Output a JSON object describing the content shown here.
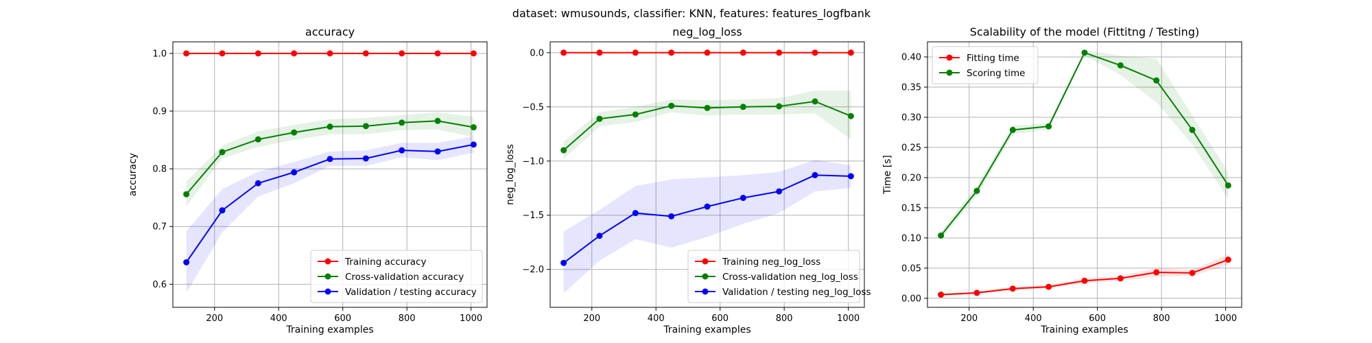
{
  "figure": {
    "suptitle": "dataset: wmusounds, classifier: KNN, features: features_logfbank"
  },
  "chart_data": [
    {
      "type": "line",
      "title": "accuracy",
      "xlabel": "Training examples",
      "ylabel": "accuracy",
      "xlim": [
        70,
        1050
      ],
      "ylim": [
        0.56,
        1.02
      ],
      "xticks": [
        200,
        400,
        600,
        800,
        1000
      ],
      "yticks": [
        0.6,
        0.7,
        0.8,
        0.9,
        1.0
      ],
      "ytick_labels": [
        "0.6",
        "0.7",
        "0.8",
        "0.9",
        "1.0"
      ],
      "grid": true,
      "legend_position": "lower-right",
      "x": [
        112,
        224,
        336,
        448,
        560,
        672,
        784,
        896,
        1008
      ],
      "series": [
        {
          "name": "Training accuracy",
          "color": "#ff0000",
          "values": [
            1.0,
            1.0,
            1.0,
            1.0,
            1.0,
            1.0,
            1.0,
            1.0,
            1.0
          ],
          "band": [
            [
              1.0,
              1.0
            ],
            [
              1.0,
              1.0
            ],
            [
              1.0,
              1.0
            ],
            [
              1.0,
              1.0
            ],
            [
              1.0,
              1.0
            ],
            [
              1.0,
              1.0
            ],
            [
              1.0,
              1.0
            ],
            [
              1.0,
              1.0
            ],
            [
              1.0,
              1.0
            ]
          ]
        },
        {
          "name": "Cross-validation accuracy",
          "color": "#008000",
          "values": [
            0.756,
            0.829,
            0.851,
            0.863,
            0.873,
            0.874,
            0.88,
            0.883,
            0.872
          ],
          "band": [
            [
              0.735,
              0.778
            ],
            [
              0.818,
              0.84
            ],
            [
              0.838,
              0.865
            ],
            [
              0.85,
              0.876
            ],
            [
              0.86,
              0.886
            ],
            [
              0.86,
              0.888
            ],
            [
              0.867,
              0.893
            ],
            [
              0.868,
              0.898
            ],
            [
              0.855,
              0.89
            ]
          ]
        },
        {
          "name": "Validation / testing accuracy",
          "color": "#0000ff",
          "values": [
            0.638,
            0.728,
            0.775,
            0.794,
            0.817,
            0.818,
            0.832,
            0.83,
            0.842
          ],
          "band": [
            [
              0.585,
              0.692
            ],
            [
              0.69,
              0.765
            ],
            [
              0.752,
              0.795
            ],
            [
              0.775,
              0.812
            ],
            [
              0.805,
              0.83
            ],
            [
              0.805,
              0.832
            ],
            [
              0.82,
              0.845
            ],
            [
              0.815,
              0.845
            ],
            [
              0.828,
              0.856
            ]
          ]
        }
      ]
    },
    {
      "type": "line",
      "title": "neg_log_loss",
      "xlabel": "Training examples",
      "ylabel": "neg_log_loss",
      "xlim": [
        70,
        1050
      ],
      "ylim": [
        -2.35,
        0.1
      ],
      "xticks": [
        200,
        400,
        600,
        800,
        1000
      ],
      "yticks": [
        -2.0,
        -1.5,
        -1.0,
        -0.5,
        0.0
      ],
      "ytick_labels": [
        "−2.0",
        "−1.5",
        "−1.0",
        "−0.5",
        "0.0"
      ],
      "grid": true,
      "legend_position": "lower-right",
      "x": [
        112,
        224,
        336,
        448,
        560,
        672,
        784,
        896,
        1008
      ],
      "series": [
        {
          "name": "Training neg_log_loss",
          "color": "#ff0000",
          "values": [
            0.0,
            0.0,
            0.0,
            0.0,
            0.0,
            0.0,
            0.0,
            0.0,
            0.0
          ],
          "band": [
            [
              0.0,
              0.0
            ],
            [
              0.0,
              0.0
            ],
            [
              0.0,
              0.0
            ],
            [
              0.0,
              0.0
            ],
            [
              0.0,
              0.0
            ],
            [
              0.0,
              0.0
            ],
            [
              0.0,
              0.0
            ],
            [
              0.0,
              0.0
            ],
            [
              0.0,
              0.0
            ]
          ]
        },
        {
          "name": "Cross-validation neg_log_loss",
          "color": "#008000",
          "values": [
            -0.9,
            -0.61,
            -0.57,
            -0.49,
            -0.51,
            -0.5,
            -0.495,
            -0.45,
            -0.585
          ],
          "band": [
            [
              -0.98,
              -0.82
            ],
            [
              -0.68,
              -0.55
            ],
            [
              -0.64,
              -0.5
            ],
            [
              -0.55,
              -0.43
            ],
            [
              -0.58,
              -0.44
            ],
            [
              -0.57,
              -0.43
            ],
            [
              -0.57,
              -0.42
            ],
            [
              -0.56,
              -0.35
            ],
            [
              -0.8,
              -0.35
            ]
          ]
        },
        {
          "name": "Validation / testing neg_log_loss",
          "color": "#0000ff",
          "values": [
            -1.94,
            -1.69,
            -1.48,
            -1.51,
            -1.42,
            -1.34,
            -1.28,
            -1.13,
            -1.14
          ],
          "band": [
            [
              -2.22,
              -1.65
            ],
            [
              -1.92,
              -1.45
            ],
            [
              -1.72,
              -1.23
            ],
            [
              -1.8,
              -1.17
            ],
            [
              -1.7,
              -1.15
            ],
            [
              -1.58,
              -1.13
            ],
            [
              -1.48,
              -1.1
            ],
            [
              -1.28,
              -0.99
            ],
            [
              -1.25,
              -1.04
            ]
          ]
        }
      ]
    },
    {
      "type": "line",
      "title": "Scalability of the model (Fittitng / Testing)",
      "xlabel": "Training examples",
      "ylabel": "Time [s]",
      "xlim": [
        70,
        1050
      ],
      "ylim": [
        -0.015,
        0.425
      ],
      "xticks": [
        200,
        400,
        600,
        800,
        1000
      ],
      "yticks": [
        0.0,
        0.05,
        0.1,
        0.15,
        0.2,
        0.25,
        0.3,
        0.35,
        0.4
      ],
      "ytick_labels": [
        "0.00",
        "0.05",
        "0.10",
        "0.15",
        "0.20",
        "0.25",
        "0.30",
        "0.35",
        "0.40"
      ],
      "grid": true,
      "legend_position": "top-left",
      "x": [
        112,
        224,
        336,
        448,
        560,
        672,
        784,
        896,
        1008
      ],
      "series": [
        {
          "name": "Fitting time",
          "color": "#ff0000",
          "values": [
            0.006,
            0.009,
            0.016,
            0.019,
            0.029,
            0.033,
            0.043,
            0.042,
            0.064
          ],
          "band": [
            [
              0.004,
              0.008
            ],
            [
              0.007,
              0.011
            ],
            [
              0.013,
              0.019
            ],
            [
              0.016,
              0.022
            ],
            [
              0.025,
              0.033
            ],
            [
              0.029,
              0.037
            ],
            [
              0.036,
              0.05
            ],
            [
              0.037,
              0.047
            ],
            [
              0.055,
              0.073
            ]
          ]
        },
        {
          "name": "Scoring time",
          "color": "#008000",
          "values": [
            0.104,
            0.178,
            0.279,
            0.285,
            0.407,
            0.386,
            0.361,
            0.279,
            0.187
          ],
          "band": [
            [
              0.098,
              0.11
            ],
            [
              0.17,
              0.186
            ],
            [
              0.272,
              0.286
            ],
            [
              0.28,
              0.29
            ],
            [
              0.403,
              0.411
            ],
            [
              0.37,
              0.402
            ],
            [
              0.325,
              0.397
            ],
            [
              0.255,
              0.303
            ],
            [
              0.165,
              0.209
            ]
          ]
        }
      ]
    }
  ]
}
